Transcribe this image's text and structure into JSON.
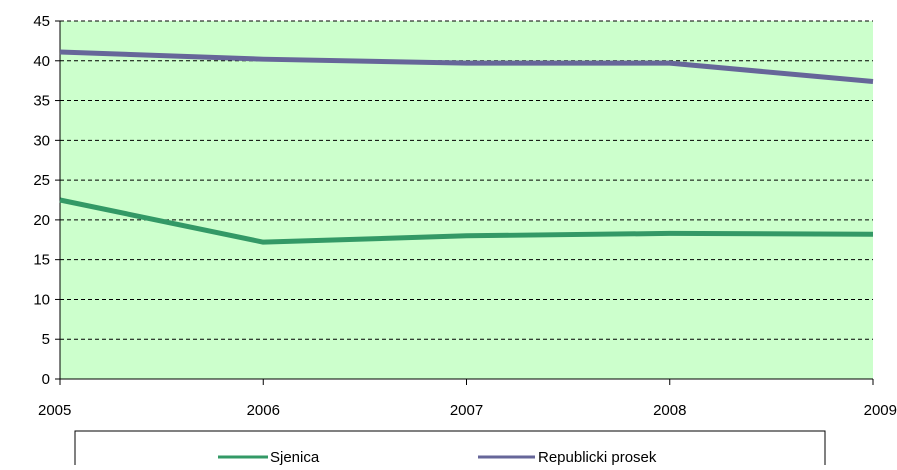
{
  "chart_data": {
    "type": "line",
    "title": "",
    "xlabel": "",
    "ylabel": "",
    "x": [
      2005,
      2006,
      2007,
      2008,
      2009
    ],
    "x_tick_labels": [
      "2005",
      "2006",
      "2007",
      "2008",
      "2009"
    ],
    "y_tick_labels": [
      "0",
      "5",
      "10",
      "15",
      "20",
      "25",
      "30",
      "35",
      "40",
      "45"
    ],
    "ylim": [
      0,
      45
    ],
    "y_ticks": [
      0,
      5,
      10,
      15,
      20,
      25,
      30,
      35,
      40,
      45
    ],
    "grid": true,
    "legend_position": "bottom",
    "plot_background": "#ccffcc",
    "series": [
      {
        "name": "Sjenica",
        "color": "#339966",
        "values": [
          22.5,
          17.2,
          18.0,
          18.3,
          18.2
        ]
      },
      {
        "name": "Republicki prosek",
        "color": "#666699",
        "values": [
          41.1,
          40.2,
          39.7,
          39.7,
          37.4
        ]
      }
    ]
  }
}
